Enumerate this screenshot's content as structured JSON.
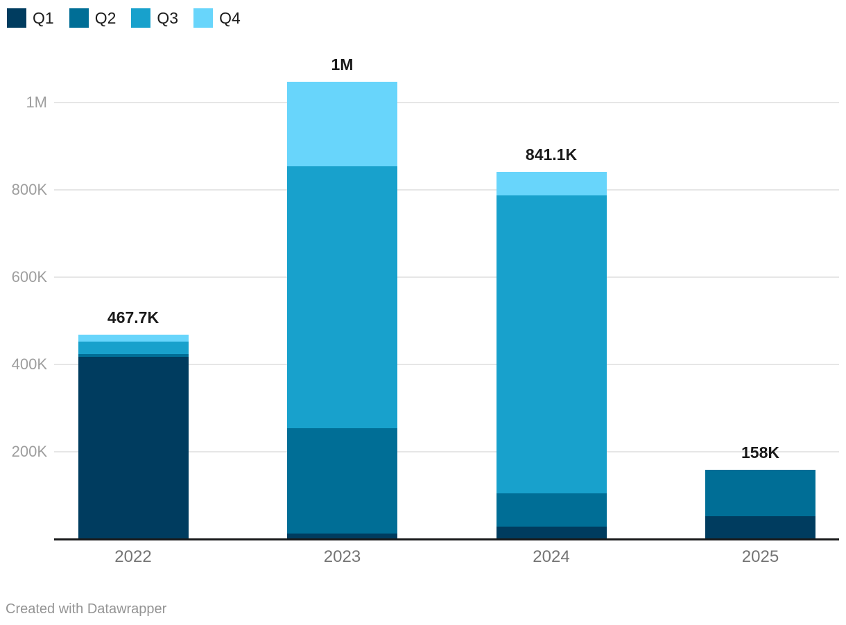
{
  "legend": {
    "items": [
      {
        "label": "Q1",
        "color": "#003c5f"
      },
      {
        "label": "Q2",
        "color": "#006e96"
      },
      {
        "label": "Q3",
        "color": "#18a1cc"
      },
      {
        "label": "Q4",
        "color": "#68d5fb"
      }
    ]
  },
  "chart_data": {
    "type": "bar",
    "stacked": true,
    "title": "",
    "xlabel": "",
    "ylabel": "",
    "categories": [
      "2022",
      "2023",
      "2024",
      "2025"
    ],
    "series": [
      {
        "name": "Q1",
        "color": "#003c5f",
        "values": [
          418.0,
          13.0,
          28.6,
          52.4
        ]
      },
      {
        "name": "Q2",
        "color": "#006e96",
        "values": [
          6.0,
          241.0,
          76.6,
          105.6
        ]
      },
      {
        "name": "Q3",
        "color": "#18a1cc",
        "values": [
          29.0,
          600.0,
          682.5,
          0
        ]
      },
      {
        "name": "Q4",
        "color": "#68d5fb",
        "values": [
          14.7,
          193.0,
          53.4,
          0
        ]
      }
    ],
    "unit": "thousands",
    "totals_labels": [
      "467.7K",
      "1M",
      "841.1K",
      "158K"
    ],
    "totals_values": [
      467.7,
      1047.0,
      841.1,
      158.0
    ],
    "y_ticks": [
      {
        "label": "1M",
        "value": 1000
      },
      {
        "label": "800K",
        "value": 800
      },
      {
        "label": "600K",
        "value": 600
      },
      {
        "label": "400K",
        "value": 400
      },
      {
        "label": "200K",
        "value": 200
      }
    ],
    "ylim": [
      0,
      1060
    ],
    "grid": true,
    "legend_position": "top-left"
  },
  "footer": {
    "credit": "Created with Datawrapper"
  },
  "colors": {
    "background": "#ffffff",
    "grid_line": "#e6e6e6",
    "axis_line": "#18191a",
    "y_tick_label": "#9e9e9e",
    "x_tick_label": "#757575",
    "total_label": "#1a1a1a",
    "footer_text": "#949494"
  }
}
